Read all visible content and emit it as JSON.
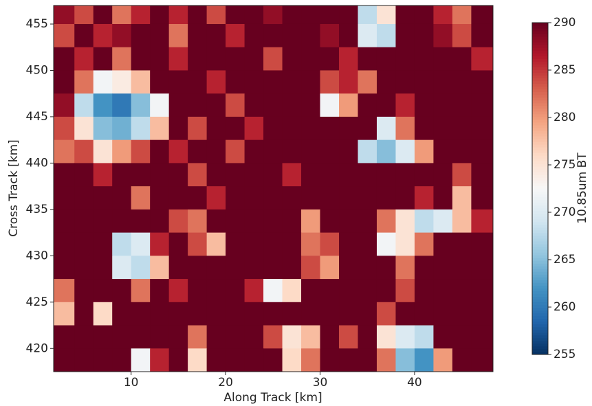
{
  "chart_data": {
    "type": "heatmap",
    "x_label": "Along Track [km]",
    "y_label": "Cross Track [km]",
    "colorbar_label": "10.85um BT",
    "colormap": "RdBu_r",
    "xlim": [
      1.8,
      48.3
    ],
    "ylim": [
      417.5,
      457
    ],
    "xticks": [
      10,
      20,
      30,
      40
    ],
    "yticks": [
      420,
      425,
      430,
      435,
      440,
      445,
      450,
      455
    ],
    "clim": [
      255,
      290
    ],
    "cticks": [
      255,
      260,
      265,
      270,
      275,
      280,
      285,
      290
    ],
    "x_edges": [
      1.8,
      4,
      6,
      8,
      10,
      12,
      14,
      16,
      18,
      20,
      22,
      24,
      26,
      28,
      30,
      32,
      34,
      36,
      38,
      40,
      42,
      44,
      46,
      48.3
    ],
    "y_edges": [
      457,
      455,
      452.5,
      450,
      447.5,
      445,
      442.5,
      440,
      437.5,
      435,
      432.5,
      430,
      427.5,
      425,
      422.5,
      420,
      417.5
    ],
    "z": [
      [
        288,
        284,
        290,
        282,
        286,
        290,
        286,
        290,
        284,
        290,
        290,
        288,
        290,
        290,
        290,
        290,
        268,
        275,
        290,
        290,
        286,
        282,
        290
      ],
      [
        284,
        290,
        286,
        288,
        290,
        290,
        282,
        290,
        290,
        286,
        290,
        290,
        290,
        290,
        288,
        290,
        270,
        268,
        290,
        290,
        288,
        284,
        290
      ],
      [
        290,
        286,
        290,
        282,
        290,
        290,
        286,
        290,
        290,
        290,
        290,
        284,
        290,
        290,
        290,
        286,
        290,
        290,
        290,
        290,
        290,
        290,
        286
      ],
      [
        290,
        282,
        272,
        274,
        278,
        290,
        290,
        290,
        286,
        290,
        290,
        290,
        290,
        290,
        284,
        286,
        282,
        290,
        290,
        290,
        290,
        290,
        290
      ],
      [
        288,
        268,
        262,
        260,
        265,
        272,
        290,
        290,
        290,
        284,
        290,
        290,
        290,
        290,
        272,
        280,
        290,
        290,
        286,
        290,
        290,
        290,
        290
      ],
      [
        284,
        275,
        265,
        264,
        268,
        278,
        290,
        284,
        290,
        290,
        286,
        290,
        290,
        290,
        290,
        290,
        290,
        270,
        282,
        290,
        290,
        290,
        290
      ],
      [
        282,
        284,
        275,
        280,
        284,
        290,
        286,
        290,
        290,
        284,
        290,
        290,
        290,
        290,
        290,
        290,
        268,
        265,
        270,
        280,
        290,
        290,
        290
      ],
      [
        290,
        290,
        286,
        290,
        290,
        290,
        290,
        284,
        290,
        290,
        290,
        290,
        286,
        290,
        290,
        290,
        290,
        290,
        290,
        290,
        290,
        284,
        290
      ],
      [
        290,
        290,
        290,
        290,
        282,
        290,
        290,
        290,
        286,
        290,
        290,
        290,
        290,
        290,
        290,
        290,
        290,
        290,
        290,
        286,
        290,
        278,
        290
      ],
      [
        290,
        290,
        290,
        290,
        290,
        290,
        284,
        282,
        290,
        290,
        290,
        290,
        290,
        280,
        290,
        290,
        290,
        282,
        275,
        268,
        270,
        278,
        286
      ],
      [
        290,
        290,
        290,
        268,
        270,
        286,
        290,
        284,
        278,
        290,
        290,
        290,
        290,
        282,
        284,
        290,
        290,
        272,
        275,
        282,
        290,
        290,
        290
      ],
      [
        290,
        290,
        290,
        270,
        268,
        278,
        290,
        290,
        290,
        290,
        290,
        290,
        290,
        284,
        280,
        290,
        290,
        290,
        282,
        290,
        290,
        290,
        290
      ],
      [
        282,
        290,
        290,
        290,
        282,
        290,
        286,
        290,
        290,
        290,
        286,
        272,
        276,
        290,
        290,
        290,
        290,
        290,
        284,
        290,
        290,
        290,
        290
      ],
      [
        278,
        290,
        276,
        290,
        290,
        290,
        290,
        290,
        290,
        290,
        290,
        290,
        290,
        290,
        290,
        290,
        290,
        284,
        290,
        290,
        290,
        290,
        290
      ],
      [
        290,
        290,
        290,
        290,
        290,
        290,
        290,
        282,
        290,
        290,
        290,
        284,
        275,
        278,
        290,
        284,
        290,
        275,
        270,
        268,
        290,
        290,
        290
      ],
      [
        290,
        290,
        290,
        290,
        272,
        286,
        290,
        276,
        290,
        290,
        290,
        290,
        276,
        282,
        290,
        290,
        290,
        282,
        265,
        262,
        280,
        290,
        290
      ]
    ]
  }
}
